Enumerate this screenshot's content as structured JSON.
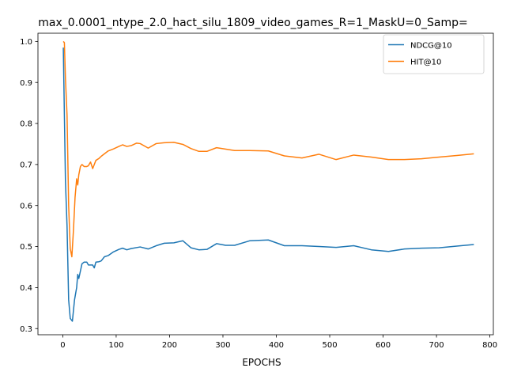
{
  "chart_data": {
    "type": "line",
    "title": "max_0.0001_ntype_2.0_hact_silu_1809_video_games_R=1_MaskU=0_Samp=",
    "xlabel": "EPOCHS",
    "ylabel": "",
    "xlim": [
      -46.5,
      806.5
    ],
    "ylim": [
      0.285,
      1.02
    ],
    "xticks": [
      0,
      100,
      200,
      300,
      400,
      500,
      600,
      700,
      800
    ],
    "xtick_labels": [
      "0",
      "100",
      "200",
      "300",
      "400",
      "500",
      "600",
      "700",
      "800"
    ],
    "yticks": [
      0.3,
      0.4,
      0.5,
      0.6,
      0.7,
      0.8,
      0.9,
      1.0
    ],
    "ytick_labels": [
      "0.3",
      "0.4",
      "0.5",
      "0.6",
      "0.7",
      "0.8",
      "0.9",
      "1.0"
    ],
    "grid": false,
    "legend_position": "top-right",
    "series": [
      {
        "name": "NDCG@10",
        "color": "#1f77b4",
        "x": [
          1,
          3,
          5,
          8,
          11,
          14,
          18,
          22,
          26,
          28,
          30,
          33,
          36,
          40,
          45,
          48,
          52,
          56,
          59,
          62,
          68,
          72,
          78,
          85,
          95,
          105,
          112,
          120,
          128,
          145,
          160,
          175,
          190,
          208,
          225,
          240,
          255,
          270,
          288,
          305,
          322,
          350,
          385,
          415,
          448,
          480,
          512,
          545,
          578,
          610,
          640,
          672,
          705,
          738,
          770
        ],
        "y": [
          0.985,
          0.82,
          0.66,
          0.55,
          0.37,
          0.325,
          0.318,
          0.37,
          0.4,
          0.432,
          0.422,
          0.44,
          0.458,
          0.462,
          0.462,
          0.455,
          0.455,
          0.455,
          0.448,
          0.462,
          0.463,
          0.465,
          0.475,
          0.478,
          0.487,
          0.493,
          0.496,
          0.492,
          0.495,
          0.499,
          0.494,
          0.502,
          0.508,
          0.509,
          0.514,
          0.497,
          0.492,
          0.493,
          0.507,
          0.503,
          0.503,
          0.514,
          0.516,
          0.502,
          0.502,
          0.5,
          0.498,
          0.502,
          0.492,
          0.488,
          0.494,
          0.496,
          0.497,
          0.501,
          0.505
        ]
      },
      {
        "name": "HIT@10",
        "color": "#ff7f0e",
        "x": [
          1,
          3,
          5,
          8,
          11,
          14,
          17,
          20,
          23,
          26,
          28,
          30,
          33,
          36,
          40,
          45,
          48,
          52,
          56,
          59,
          62,
          68,
          72,
          78,
          85,
          95,
          105,
          112,
          120,
          128,
          138,
          145,
          160,
          175,
          190,
          208,
          225,
          240,
          255,
          270,
          288,
          322,
          350,
          385,
          415,
          448,
          480,
          512,
          545,
          578,
          610,
          640,
          672,
          705,
          738,
          770
        ],
        "y": [
          1.0,
          0.997,
          0.91,
          0.82,
          0.6,
          0.495,
          0.475,
          0.54,
          0.62,
          0.665,
          0.65,
          0.675,
          0.695,
          0.7,
          0.695,
          0.695,
          0.697,
          0.706,
          0.69,
          0.7,
          0.71,
          0.715,
          0.72,
          0.726,
          0.733,
          0.738,
          0.744,
          0.748,
          0.744,
          0.746,
          0.752,
          0.751,
          0.74,
          0.751,
          0.753,
          0.754,
          0.749,
          0.739,
          0.732,
          0.732,
          0.741,
          0.734,
          0.734,
          0.733,
          0.721,
          0.716,
          0.725,
          0.712,
          0.723,
          0.718,
          0.712,
          0.712,
          0.714,
          0.718,
          0.722,
          0.726
        ]
      }
    ]
  }
}
